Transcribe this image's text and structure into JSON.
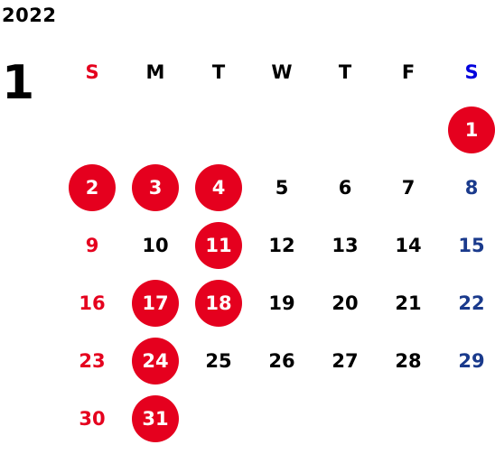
{
  "year": "2022",
  "month": "1",
  "weekdays": [
    "S",
    "M",
    "T",
    "W",
    "T",
    "F",
    "S"
  ],
  "colors": {
    "holiday_red": "#e5001e",
    "saturday_blue": "#1a3a8c",
    "saturday_header_blue": "#0000dd"
  },
  "days": [
    {
      "day": "1",
      "col": 7,
      "row": 1,
      "holiday": true
    },
    {
      "day": "2",
      "col": 1,
      "row": 2,
      "holiday": true
    },
    {
      "day": "3",
      "col": 2,
      "row": 2,
      "holiday": true
    },
    {
      "day": "4",
      "col": 3,
      "row": 2,
      "holiday": true
    },
    {
      "day": "5",
      "col": 4,
      "row": 2,
      "holiday": false
    },
    {
      "day": "6",
      "col": 5,
      "row": 2,
      "holiday": false
    },
    {
      "day": "7",
      "col": 6,
      "row": 2,
      "holiday": false
    },
    {
      "day": "8",
      "col": 7,
      "row": 2,
      "holiday": false
    },
    {
      "day": "9",
      "col": 1,
      "row": 3,
      "holiday": false
    },
    {
      "day": "10",
      "col": 2,
      "row": 3,
      "holiday": false
    },
    {
      "day": "11",
      "col": 3,
      "row": 3,
      "holiday": true
    },
    {
      "day": "12",
      "col": 4,
      "row": 3,
      "holiday": false
    },
    {
      "day": "13",
      "col": 5,
      "row": 3,
      "holiday": false
    },
    {
      "day": "14",
      "col": 6,
      "row": 3,
      "holiday": false
    },
    {
      "day": "15",
      "col": 7,
      "row": 3,
      "holiday": false
    },
    {
      "day": "16",
      "col": 1,
      "row": 4,
      "holiday": false
    },
    {
      "day": "17",
      "col": 2,
      "row": 4,
      "holiday": true
    },
    {
      "day": "18",
      "col": 3,
      "row": 4,
      "holiday": true
    },
    {
      "day": "19",
      "col": 4,
      "row": 4,
      "holiday": false
    },
    {
      "day": "20",
      "col": 5,
      "row": 4,
      "holiday": false
    },
    {
      "day": "21",
      "col": 6,
      "row": 4,
      "holiday": false
    },
    {
      "day": "22",
      "col": 7,
      "row": 4,
      "holiday": false
    },
    {
      "day": "23",
      "col": 1,
      "row": 5,
      "holiday": false
    },
    {
      "day": "24",
      "col": 2,
      "row": 5,
      "holiday": true
    },
    {
      "day": "25",
      "col": 3,
      "row": 5,
      "holiday": false
    },
    {
      "day": "26",
      "col": 4,
      "row": 5,
      "holiday": false
    },
    {
      "day": "27",
      "col": 5,
      "row": 5,
      "holiday": false
    },
    {
      "day": "28",
      "col": 6,
      "row": 5,
      "holiday": false
    },
    {
      "day": "29",
      "col": 7,
      "row": 5,
      "holiday": false
    },
    {
      "day": "30",
      "col": 1,
      "row": 6,
      "holiday": false
    },
    {
      "day": "31",
      "col": 2,
      "row": 6,
      "holiday": true
    }
  ]
}
